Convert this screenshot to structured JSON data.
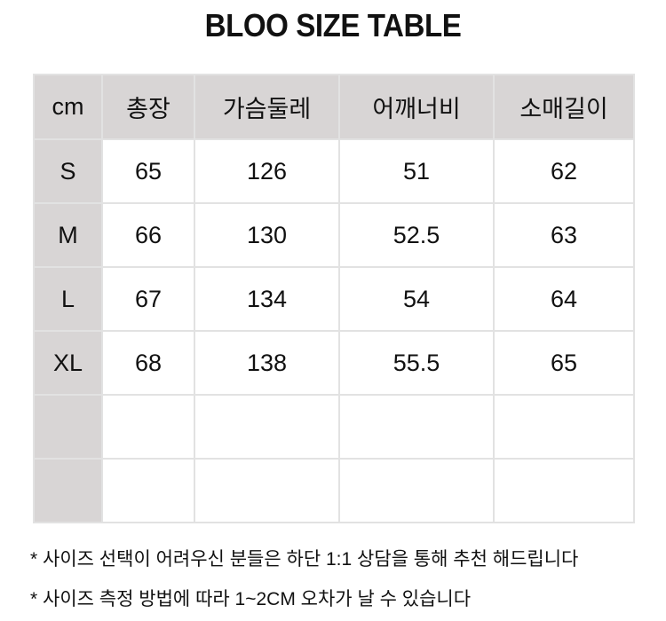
{
  "title": "BLOO SIZE TABLE",
  "table": {
    "headers": [
      "cm",
      "총장",
      "가슴둘레",
      "어깨너비",
      "소매길이"
    ],
    "rows": [
      [
        "S",
        "65",
        "126",
        "51",
        "62"
      ],
      [
        "M",
        "66",
        "130",
        "52.5",
        "63"
      ],
      [
        "L",
        "67",
        "134",
        "54",
        "64"
      ],
      [
        "XL",
        "68",
        "138",
        "55.5",
        "65"
      ],
      [
        "",
        "",
        "",
        "",
        ""
      ],
      [
        "",
        "",
        "",
        "",
        ""
      ]
    ]
  },
  "notes": [
    "* 사이즈 선택이 어려우신 분들은 하단 1:1 상담을 통해 추천 해드립니다",
    "* 사이즈 측정 방법에 따라 1~2CM 오차가 날 수 있습니다"
  ],
  "colors": {
    "header_bg": "#d8d5d5",
    "border": "#e2e2e2"
  }
}
